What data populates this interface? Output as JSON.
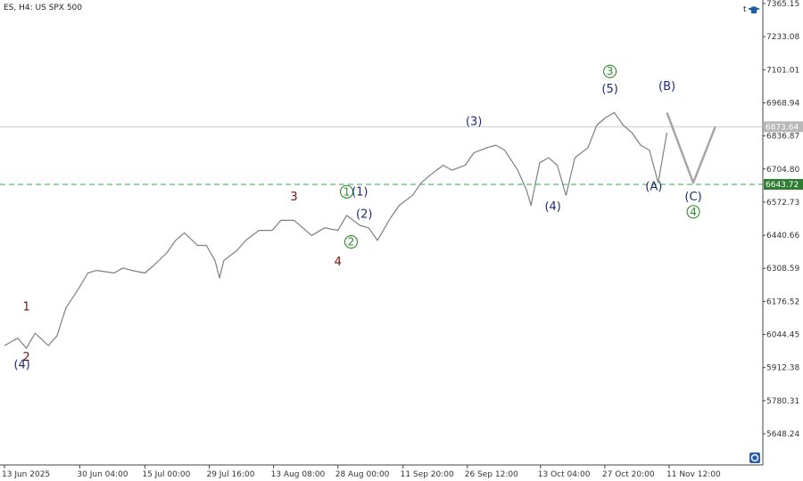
{
  "header": {
    "title": "ES, H4:  US SPX 500",
    "corner_letter": "t",
    "corner_icon": "graduation-cap-icon"
  },
  "colors": {
    "candle": "#7f7f7f",
    "projection": "#a6a6a6",
    "support_line": "#3fa34d",
    "current_line": "#c8c8c8",
    "navy": "#1e2a78",
    "red": "#7a1010",
    "green": "#2e8b2e"
  },
  "chart_data": {
    "type": "line",
    "title": "ES, H4:  US SPX 500",
    "x_tick_labels": [
      "13 Jun 2025",
      "30 Jun 04:00",
      "15 Jul 00:00",
      "29 Jul 16:00",
      "13 Aug 08:00",
      "28 Aug 00:00",
      "11 Sep 20:00",
      "26 Sep 12:00",
      "13 Oct 04:00",
      "27 Oct 20:00",
      "11 Nov 12:00"
    ],
    "y_ticks": [
      7365.15,
      7233.08,
      7101.01,
      6968.94,
      6836.87,
      6704.8,
      6572.73,
      6440.66,
      6308.59,
      6176.52,
      6044.45,
      5912.38,
      5780.31,
      5648.24
    ],
    "y_tick_labels": [
      "7365.15",
      "7233.08",
      "7101.01",
      "6968.94",
      "6836.87",
      "6704.80",
      "6572.73",
      "6440.66",
      "6308.59",
      "6176.52",
      "6044.45",
      "5912.38",
      "5780.31",
      "5648.24"
    ],
    "ylim": [
      5530,
      7370
    ],
    "series": [
      {
        "x": [
          "13 Jun 2025",
          "16 Jun 2025",
          "18 Jun 2025",
          "20 Jun 2025",
          "23 Jun 2025",
          "25 Jun 2025",
          "27 Jun 2025",
          "30 Jun 2025",
          "02 Jul 2025",
          "04 Jul 2025",
          "08 Jul 2025",
          "10 Jul 2025",
          "12 Jul 2025",
          "15 Jul 2025",
          "17 Jul 2025",
          "20 Jul 2025",
          "22 Jul 2025",
          "24 Jul 2025",
          "27 Jul 2025",
          "29 Jul 2025",
          "31 Jul 2025",
          "01 Aug 2025",
          "02 Aug 2025",
          "05 Aug 2025",
          "07 Aug 2025",
          "10 Aug 2025",
          "13 Aug 2025",
          "15 Aug 2025",
          "18 Aug 2025",
          "20 Aug 2025",
          "22 Aug 2025",
          "25 Aug 2025",
          "28 Aug 2025",
          "30 Aug 2025",
          "02 Sep 2025",
          "04 Sep 2025",
          "06 Sep 2025",
          "09 Sep 2025",
          "11 Sep 2025",
          "14 Sep 2025",
          "16 Sep 2025",
          "18 Sep 2025",
          "21 Sep 2025",
          "23 Sep 2025",
          "26 Sep 2025",
          "28 Sep 2025",
          "01 Oct 2025",
          "03 Oct 2025",
          "05 Oct 2025",
          "08 Oct 2025",
          "10 Oct 2025",
          "11 Oct 2025",
          "13 Oct 2025",
          "15 Oct 2025",
          "17 Oct 2025",
          "19 Oct 2025",
          "21 Oct 2025",
          "24 Oct 2025",
          "26 Oct 2025",
          "28 Oct 2025",
          "30 Oct 2025",
          "01 Nov 2025",
          "03 Nov 2025",
          "05 Nov 2025",
          "07 Nov 2025",
          "09 Nov 2025",
          "11 Nov 2025"
        ],
        "y": [
          6000,
          6030,
          5990,
          6050,
          6000,
          6040,
          6150,
          6230,
          6290,
          6300,
          6290,
          6310,
          6300,
          6290,
          6320,
          6370,
          6420,
          6450,
          6400,
          6400,
          6340,
          6270,
          6340,
          6380,
          6420,
          6460,
          6460,
          6500,
          6500,
          6470,
          6440,
          6470,
          6460,
          6520,
          6480,
          6470,
          6420,
          6510,
          6560,
          6600,
          6650,
          6680,
          6720,
          6700,
          6720,
          6770,
          6790,
          6800,
          6780,
          6700,
          6620,
          6560,
          6730,
          6750,
          6720,
          6600,
          6750,
          6790,
          6880,
          6910,
          6930,
          6880,
          6850,
          6800,
          6780,
          6650,
          6850
        ]
      },
      {
        "name": "projection",
        "x": [
          "11 Nov 2025",
          "17 Nov 2025",
          "22 Nov 2025"
        ],
        "y": [
          6930,
          6650,
          6873
        ]
      }
    ],
    "horizontal_lines": [
      {
        "value": 6873.64,
        "label": "6873.64",
        "style": "solid"
      },
      {
        "value": 6643.72,
        "label": "6643.72",
        "style": "dashed"
      }
    ],
    "wave_labels": [
      {
        "text": "1",
        "color": "red",
        "x": "18 Jun 2025",
        "y": 6140
      },
      {
        "text": "2",
        "color": "red",
        "x": "18 Jun 2025",
        "y": 5940
      },
      {
        "text": "(4)",
        "color": "navy",
        "x": "17 Jun 2025",
        "y": 5910
      },
      {
        "text": "3",
        "color": "red",
        "x": "18 Aug 2025",
        "y": 6580
      },
      {
        "text": "4",
        "color": "red",
        "x": "28 Aug 2025",
        "y": 6320
      },
      {
        "text": "1",
        "color": "green",
        "circled": true,
        "x": "30 Aug 2025",
        "y": 6600
      },
      {
        "text": "(1)",
        "color": "navy",
        "x": "02 Sep 2025",
        "y": 6600
      },
      {
        "text": "(2)",
        "color": "navy",
        "x": "03 Sep 2025",
        "y": 6510
      },
      {
        "text": "2",
        "color": "green",
        "circled": true,
        "x": "31 Aug 2025",
        "y": 6400
      },
      {
        "text": "(3)",
        "color": "navy",
        "x": "28 Sep 2025",
        "y": 6880
      },
      {
        "text": "(4)",
        "color": "navy",
        "x": "16 Oct 2025",
        "y": 6540
      },
      {
        "text": "3",
        "color": "green",
        "circled": true,
        "x": "29 Oct 2025",
        "y": 7080
      },
      {
        "text": "(5)",
        "color": "navy",
        "x": "29 Oct 2025",
        "y": 7010
      },
      {
        "text": "(A)",
        "color": "navy",
        "x": "08 Nov 2025",
        "y": 6620
      },
      {
        "text": "(B)",
        "color": "navy",
        "x": "11 Nov 2025",
        "y": 7020
      },
      {
        "text": "(C)",
        "color": "navy",
        "x": "17 Nov 2025",
        "y": 6580
      },
      {
        "text": "4",
        "color": "green",
        "circled": true,
        "x": "17 Nov 2025",
        "y": 6520
      }
    ],
    "grid": false
  }
}
